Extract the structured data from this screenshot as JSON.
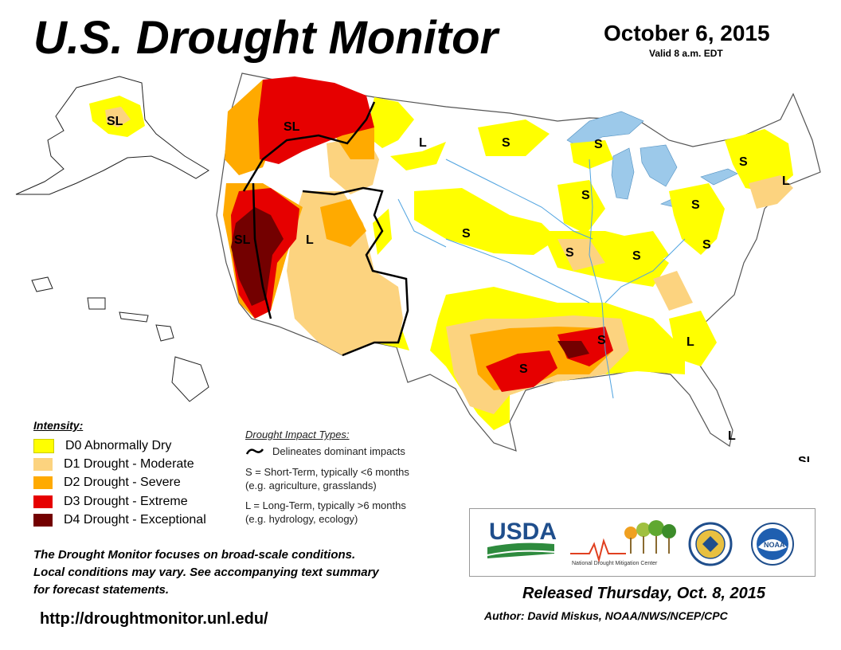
{
  "header": {
    "title": "U.S. Drought Monitor",
    "date": "October 6, 2015",
    "valid": "Valid 8 a.m. EDT"
  },
  "legend": {
    "title": "Intensity:",
    "items": [
      {
        "label": "D0 Abnormally Dry",
        "color": "#ffff00"
      },
      {
        "label": "D1 Drought - Moderate",
        "color": "#fcd37f"
      },
      {
        "label": "D2 Drought - Severe",
        "color": "#ffaa00"
      },
      {
        "label": "D3 Drought - Extreme",
        "color": "#e60000"
      },
      {
        "label": "D4 Drought - Exceptional",
        "color": "#730000"
      }
    ]
  },
  "impacts": {
    "title": "Drought Impact Types:",
    "delineates": "Delineates dominant impacts",
    "short_term": "S = Short-Term, typically <6 months",
    "short_term_example": "(e.g. agriculture, grasslands)",
    "long_term": "L = Long-Term, typically >6 months",
    "long_term_example": "(e.g. hydrology, ecology)"
  },
  "note": {
    "line1": "The Drought Monitor focuses on broad-scale conditions.",
    "line2": "Local conditions may vary. See accompanying text summary",
    "line3": "for forecast statements."
  },
  "url": "http://droughtmonitor.unl.edu/",
  "footer": {
    "released": "Released Thursday, Oct. 8, 2015",
    "author": "Author: David Miskus, NOAA/NWS/NCEP/CPC"
  },
  "logos": {
    "usda": "USDA",
    "ndmc": "National Drought Mitigation Center",
    "commerce": "Department of Commerce seal",
    "noaa": "NOAA"
  },
  "map_labels": {
    "alaska": "SL",
    "pacific_nw": "SL",
    "california": "SL",
    "great_basin": "L",
    "north_plains": "L",
    "dakota": "S",
    "upper_michigan": "S",
    "new_york": "S",
    "new_england": "L",
    "iowa": "S",
    "kansas": "S",
    "missouri": "S",
    "kentucky": "S",
    "ohio_valley": "S",
    "pennsylvania": "S",
    "west_virginia": "S",
    "arkansas": "S",
    "texas": "S",
    "carolinas": "L",
    "florida": "L",
    "puerto_rico": "SL"
  },
  "colors": {
    "d0": "#ffff00",
    "d1": "#fcd37f",
    "d2": "#ffaa00",
    "d3": "#e60000",
    "d4": "#730000",
    "water": "#9cc9ea",
    "river": "#4fa3e0"
  }
}
